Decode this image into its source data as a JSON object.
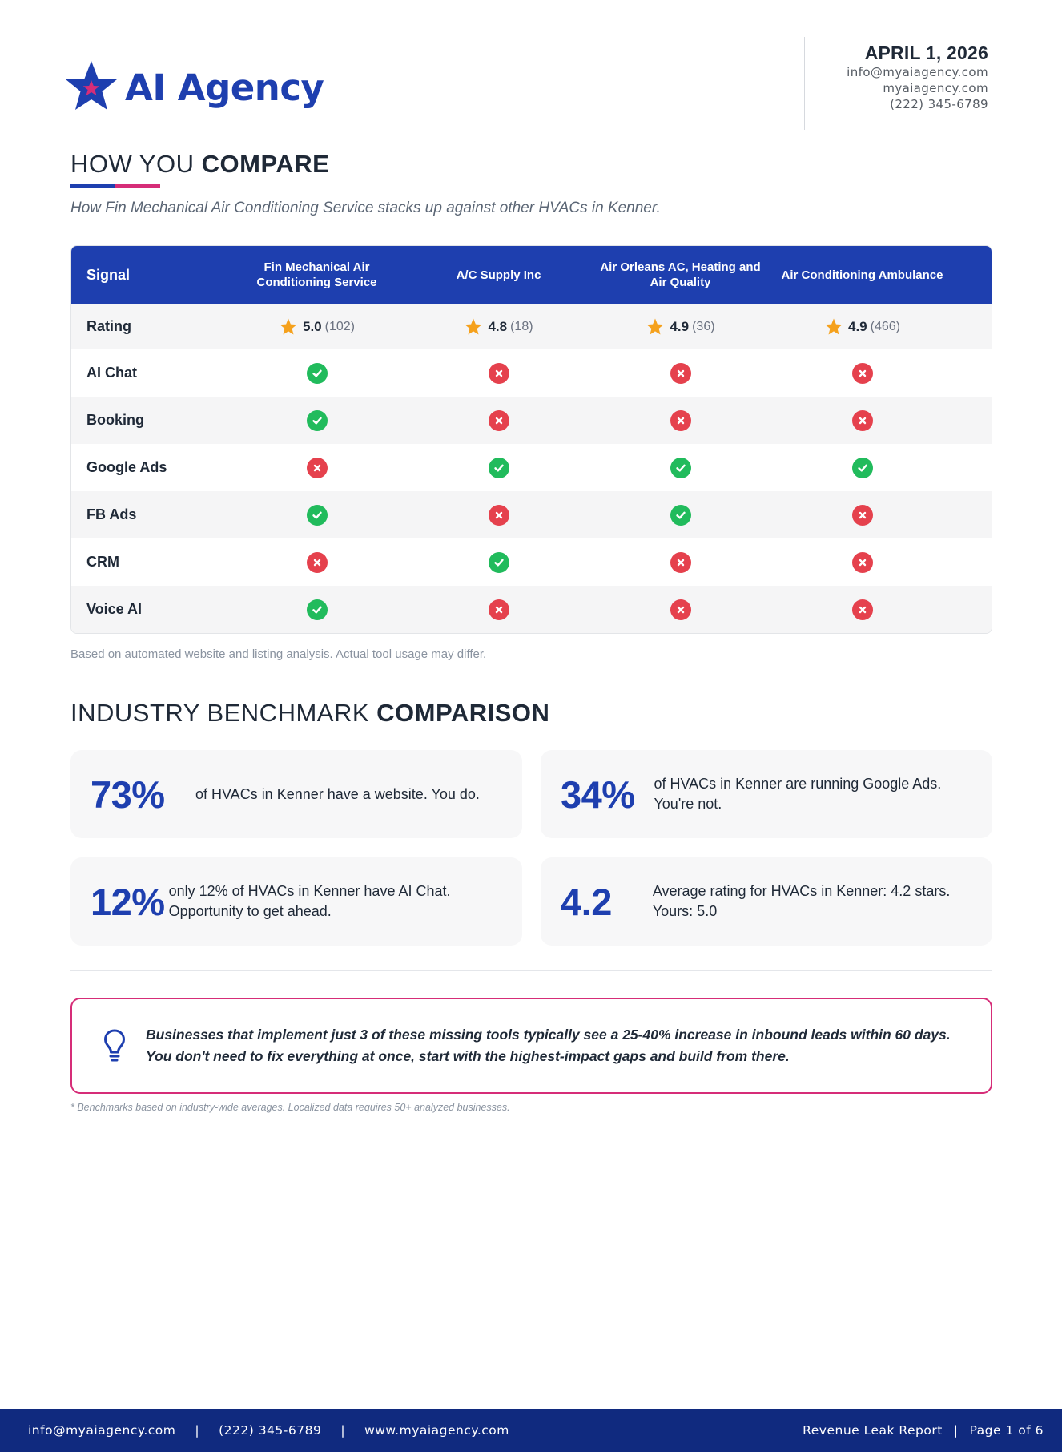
{
  "brand": {
    "name": "AI Agency",
    "star_colors": {
      "outer": "#1e3faf",
      "inner": "#d62d78"
    }
  },
  "header": {
    "date": "APRIL 1, 2026",
    "email": "info@myaiagency.com",
    "website": "myaiagency.com",
    "phone": "(222) 345-6789"
  },
  "compare": {
    "title_light": "HOW YOU",
    "title_bold": "COMPARE",
    "subtitle": "How Fin Mechanical Air Conditioning Service stacks up against other HVACs in Kenner.",
    "signal_header": "Signal",
    "competitors": [
      "Fin Mechanical Air Conditioning Service",
      "A/C Supply Inc",
      "Air Orleans AC, Heating and Air Quality",
      "Air Conditioning Ambulance"
    ],
    "rating_label": "Rating",
    "ratings": [
      {
        "value": "5.0",
        "count": "(102)"
      },
      {
        "value": "4.8",
        "count": "(18)"
      },
      {
        "value": "4.9",
        "count": "(36)"
      },
      {
        "value": "4.9",
        "count": "(466)"
      }
    ],
    "rows": [
      {
        "label": "AI Chat",
        "values": [
          true,
          false,
          false,
          false
        ]
      },
      {
        "label": "Booking",
        "values": [
          true,
          false,
          false,
          false
        ]
      },
      {
        "label": "Google Ads",
        "values": [
          false,
          true,
          true,
          true
        ]
      },
      {
        "label": "FB Ads",
        "values": [
          true,
          false,
          true,
          false
        ]
      },
      {
        "label": "CRM",
        "values": [
          false,
          true,
          false,
          false
        ]
      },
      {
        "label": "Voice AI",
        "values": [
          true,
          false,
          false,
          false
        ]
      }
    ],
    "note": "Based on automated website and listing analysis. Actual tool usage may differ."
  },
  "benchmark": {
    "title_light": "INDUSTRY BENCHMARK",
    "title_bold": "COMPARISON",
    "cards": [
      {
        "big": "73%",
        "text": "of HVACs in Kenner have a website. You do."
      },
      {
        "big": "34%",
        "text": "of HVACs in Kenner are running Google Ads. You're not."
      },
      {
        "big": "12%",
        "text": "only 12% of HVACs in Kenner have AI Chat. Opportunity to get ahead."
      },
      {
        "big": "4.2",
        "text": "Average rating for HVACs in Kenner: 4.2 stars. Yours: 5.0"
      }
    ]
  },
  "callout": {
    "text": "Businesses that implement just 3 of these missing tools typically see a 25-40% increase in inbound leads within 60 days. You don't need to fix everything at once, start with the highest-impact gaps and build from there."
  },
  "footnote": "* Benchmarks based on industry-wide averages. Localized data requires 50+ analyzed businesses.",
  "footer": {
    "email": "info@myaiagency.com",
    "phone": "(222) 345-6789",
    "website": "www.myaiagency.com",
    "report": "Revenue Leak Report",
    "page": "Page 1 of 6",
    "separator": "|"
  },
  "colors": {
    "primary": "#1e3faf",
    "accent": "#d62d78",
    "check": "#21bb5c",
    "cross": "#e5414d",
    "star": "#f5a11c",
    "footer_bg": "#102a7f"
  }
}
